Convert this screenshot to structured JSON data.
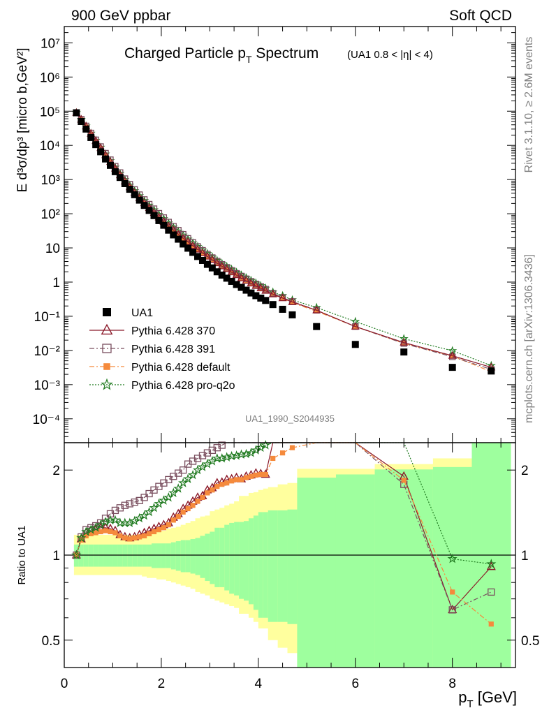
{
  "header": {
    "left": "900 GeV ppbar",
    "right": "Soft QCD"
  },
  "side": {
    "top": "Rivet 3.1.10, ≥ 2.6M events",
    "bottom": "mcplots.cern.ch [arXiv:1306.3436]"
  },
  "chart_data": [
    {
      "type": "scatter",
      "panel": "main",
      "title": "Charged Particle p",
      "title_sub": "T",
      "title_rest": " Spectrum",
      "title_extra": "(UA1 0.8 < |η| < 4)",
      "ylabel": "E d³σ/dp³ [micro b,GeV²]",
      "yscale": "log",
      "ylim": [
        2e-05,
        30000000
      ],
      "xlim": [
        0,
        9.3
      ],
      "watermark": "UA1_1990_S2044935",
      "ytick_labels": [
        "10⁷",
        "10⁶",
        "10⁵",
        "10⁴",
        "10³",
        "10²",
        "10",
        "1",
        "10⁻¹",
        "10⁻²",
        "10⁻³",
        "10⁻⁴"
      ],
      "legend_position": "lower-left",
      "series": [
        {
          "name": "UA1",
          "color": "#000000",
          "marker": "filled-square",
          "x": [
            0.25,
            0.35,
            0.45,
            0.55,
            0.65,
            0.75,
            0.85,
            0.95,
            1.05,
            1.15,
            1.25,
            1.35,
            1.45,
            1.55,
            1.65,
            1.75,
            1.85,
            1.95,
            2.05,
            2.15,
            2.25,
            2.35,
            2.45,
            2.55,
            2.65,
            2.75,
            2.85,
            2.95,
            3.05,
            3.15,
            3.25,
            3.35,
            3.45,
            3.55,
            3.65,
            3.75,
            3.85,
            3.95,
            4.05,
            4.15,
            4.3,
            4.5,
            4.7,
            5.2,
            6.0,
            7.0,
            8.0,
            8.8
          ],
          "y": [
            90000,
            50000,
            30000,
            17000,
            10500,
            6500,
            4000,
            2600,
            1700,
            1150,
            760,
            520,
            360,
            250,
            175,
            125,
            88,
            63,
            46,
            33,
            24,
            18,
            13,
            9.8,
            7.4,
            5.6,
            4.3,
            3.3,
            2.6,
            2.0,
            1.6,
            1.3,
            1.05,
            0.85,
            0.7,
            0.58,
            0.48,
            0.4,
            0.34,
            0.29,
            0.22,
            0.16,
            0.11,
            0.05,
            0.015,
            0.009,
            0.0032,
            0.0025
          ]
        },
        {
          "name": "Pythia 6.428 370",
          "color": "#8B1A2A",
          "marker": "open-triangle",
          "line": "solid",
          "x": [
            0.25,
            0.35,
            0.45,
            0.55,
            0.65,
            0.75,
            0.85,
            0.95,
            1.05,
            1.15,
            1.25,
            1.35,
            1.45,
            1.55,
            1.65,
            1.75,
            1.85,
            1.95,
            2.05,
            2.15,
            2.25,
            2.35,
            2.45,
            2.55,
            2.65,
            2.75,
            2.85,
            2.95,
            3.05,
            3.15,
            3.25,
            3.35,
            3.45,
            3.55,
            3.65,
            3.75,
            3.85,
            3.95,
            4.05,
            4.15,
            4.3,
            4.5,
            4.7,
            5.2,
            6.0,
            7.0,
            8.0,
            8.8
          ],
          "y": [
            90000,
            57000,
            36000,
            22000,
            13500,
            8400,
            5200,
            3300,
            2100,
            1350,
            880,
            600,
            410,
            290,
            205,
            148,
            107,
            78,
            58,
            43,
            33,
            25,
            19,
            15,
            11.5,
            9.0,
            7.1,
            5.6,
            4.5,
            3.6,
            2.9,
            2.4,
            1.95,
            1.6,
            1.3,
            1.1,
            0.92,
            0.78,
            0.66,
            0.56,
            0.44,
            0.34,
            0.26,
            0.15,
            0.05,
            0.017,
            0.007,
            0.0032
          ]
        },
        {
          "name": "Pythia 6.428 391",
          "color": "#7A4F5F",
          "marker": "open-square",
          "line": "dash-dot",
          "x": [
            0.25,
            0.35,
            0.45,
            0.55,
            0.65,
            0.75,
            0.85,
            0.95,
            1.05,
            1.15,
            1.25,
            1.35,
            1.45,
            1.55,
            1.65,
            1.75,
            1.85,
            1.95,
            2.05,
            2.15,
            2.25,
            2.35,
            2.45,
            2.55,
            2.65,
            2.75,
            2.85,
            2.95,
            3.05,
            3.15,
            3.25,
            3.35,
            3.45,
            3.55,
            3.65,
            3.75,
            3.85,
            3.95,
            4.05,
            4.15,
            4.3,
            4.5,
            4.7,
            5.2,
            6.0,
            7.0,
            8.0,
            8.8
          ],
          "y": [
            90000,
            58000,
            37000,
            23000,
            14500,
            9200,
            5900,
            3800,
            2450,
            1600,
            1060,
            730,
            510,
            360,
            260,
            190,
            140,
            103,
            77,
            57,
            43,
            33,
            25,
            19,
            14.5,
            11,
            8.5,
            6.6,
            5.2,
            4.1,
            3.3,
            2.7,
            2.2,
            1.8,
            1.5,
            1.25,
            1.05,
            0.88,
            0.74,
            0.62,
            0.47,
            0.35,
            0.27,
            0.15,
            0.05,
            0.016,
            0.0065,
            0.0028
          ]
        },
        {
          "name": "Pythia 6.428 default",
          "color": "#F58A3C",
          "marker": "filled-square-small",
          "line": "dash-dot",
          "x": [
            0.25,
            0.35,
            0.45,
            0.55,
            0.65,
            0.75,
            0.85,
            0.95,
            1.05,
            1.15,
            1.25,
            1.35,
            1.45,
            1.55,
            1.65,
            1.75,
            1.85,
            1.95,
            2.05,
            2.15,
            2.25,
            2.35,
            2.45,
            2.55,
            2.65,
            2.75,
            2.85,
            2.95,
            3.05,
            3.15,
            3.25,
            3.35,
            3.45,
            3.55,
            3.65,
            3.75,
            3.85,
            3.95,
            4.05,
            4.15,
            4.3,
            4.5,
            4.7,
            5.2,
            6.0,
            7.0,
            8.0,
            8.8
          ],
          "y": [
            90000,
            56000,
            35000,
            21500,
            13200,
            8200,
            5100,
            3250,
            2050,
            1320,
            860,
            590,
            405,
            285,
            200,
            145,
            105,
            77,
            57,
            42,
            32,
            24,
            18.5,
            14.5,
            11.2,
            8.8,
            6.9,
            5.5,
            4.4,
            3.5,
            2.85,
            2.35,
            1.9,
            1.57,
            1.3,
            1.08,
            0.9,
            0.76,
            0.64,
            0.55,
            0.43,
            0.33,
            0.25,
            0.14,
            0.05,
            0.016,
            0.0068,
            0.0024
          ]
        },
        {
          "name": "Pythia 6.428 pro-q2o",
          "color": "#1F7A1F",
          "marker": "open-star",
          "line": "dotted",
          "x": [
            0.25,
            0.35,
            0.45,
            0.55,
            0.65,
            0.75,
            0.85,
            0.95,
            1.05,
            1.15,
            1.25,
            1.35,
            1.45,
            1.55,
            1.65,
            1.75,
            1.85,
            1.95,
            2.05,
            2.15,
            2.25,
            2.35,
            2.45,
            2.55,
            2.65,
            2.75,
            2.85,
            2.95,
            3.05,
            3.15,
            3.25,
            3.35,
            3.45,
            3.55,
            3.65,
            3.75,
            3.85,
            3.95,
            4.05,
            4.15,
            4.3,
            4.5,
            4.7,
            5.2,
            6.0,
            7.0,
            8.0,
            8.8
          ],
          "y": [
            90000,
            57000,
            36500,
            22500,
            14000,
            8800,
            5550,
            3550,
            2300,
            1500,
            990,
            680,
            470,
            335,
            240,
            176,
            129,
            95,
            71,
            53,
            40,
            30.5,
            23.5,
            18,
            14,
            11,
            8.6,
            6.8,
            5.4,
            4.3,
            3.5,
            2.85,
            2.35,
            1.93,
            1.6,
            1.33,
            1.11,
            0.93,
            0.78,
            0.66,
            0.51,
            0.4,
            0.3,
            0.18,
            0.07,
            0.022,
            0.0098,
            0.0036
          ]
        }
      ]
    },
    {
      "type": "scatter",
      "panel": "ratio",
      "ylabel": "Ratio to UA1",
      "xlabel": "p",
      "xlabel_sub": "T",
      "xlabel_rest": " [GeV]",
      "yscale": "log",
      "ylim": [
        0.4,
        2.5
      ],
      "xlim": [
        0,
        9.3
      ],
      "xtick_labels": [
        "0",
        "2",
        "4",
        "6",
        "8"
      ],
      "ytick_labels": [
        "0.5",
        "1",
        "2"
      ],
      "band_edges": [
        0.2,
        0.3,
        0.4,
        0.5,
        0.6,
        0.7,
        0.8,
        0.9,
        1.0,
        1.1,
        1.2,
        1.3,
        1.4,
        1.5,
        1.6,
        1.7,
        1.8,
        1.9,
        2.0,
        2.1,
        2.2,
        2.3,
        2.4,
        2.5,
        2.6,
        2.7,
        2.8,
        2.9,
        3.0,
        3.1,
        3.2,
        3.3,
        3.4,
        3.5,
        3.6,
        3.7,
        3.8,
        3.9,
        4.0,
        4.1,
        4.2,
        4.4,
        4.6,
        4.8,
        5.6,
        6.4,
        7.6,
        8.4,
        9.2
      ],
      "band_stat_up": [
        1.09,
        1.09,
        1.09,
        1.09,
        1.09,
        1.09,
        1.09,
        1.09,
        1.09,
        1.09,
        1.09,
        1.09,
        1.09,
        1.09,
        1.09,
        1.09,
        1.1,
        1.1,
        1.1,
        1.1,
        1.11,
        1.12,
        1.13,
        1.13,
        1.14,
        1.15,
        1.17,
        1.19,
        1.21,
        1.25,
        1.25,
        1.28,
        1.3,
        1.31,
        1.31,
        1.32,
        1.35,
        1.38,
        1.42,
        1.42,
        1.44,
        1.44,
        1.45,
        1.88,
        1.93,
        2.01,
        2.05,
        2.55
      ],
      "band_stat_dn": [
        0.91,
        0.91,
        0.91,
        0.91,
        0.91,
        0.91,
        0.91,
        0.91,
        0.91,
        0.91,
        0.91,
        0.91,
        0.91,
        0.91,
        0.91,
        0.91,
        0.9,
        0.9,
        0.9,
        0.9,
        0.89,
        0.88,
        0.87,
        0.87,
        0.86,
        0.85,
        0.83,
        0.81,
        0.79,
        0.77,
        0.77,
        0.75,
        0.73,
        0.72,
        0.7,
        0.69,
        0.67,
        0.64,
        0.6,
        0.6,
        0.58,
        0.58,
        0.57,
        0.4,
        0.4,
        0.4,
        0.4,
        0.4
      ],
      "band_tot_up": [
        1.18,
        1.18,
        1.18,
        1.18,
        1.18,
        1.18,
        1.18,
        1.18,
        1.18,
        1.18,
        1.18,
        1.18,
        1.18,
        1.18,
        1.19,
        1.2,
        1.21,
        1.21,
        1.22,
        1.24,
        1.25,
        1.26,
        1.28,
        1.3,
        1.32,
        1.35,
        1.37,
        1.38,
        1.43,
        1.45,
        1.47,
        1.5,
        1.52,
        1.55,
        1.62,
        1.62,
        1.66,
        1.67,
        1.7,
        1.72,
        1.74,
        1.78,
        1.8,
        2.02,
        2.02,
        2.1,
        2.2,
        2.6
      ],
      "band_tot_dn": [
        0.85,
        0.85,
        0.85,
        0.85,
        0.85,
        0.85,
        0.85,
        0.85,
        0.85,
        0.85,
        0.85,
        0.85,
        0.85,
        0.85,
        0.84,
        0.83,
        0.83,
        0.82,
        0.82,
        0.81,
        0.8,
        0.79,
        0.78,
        0.77,
        0.76,
        0.74,
        0.73,
        0.72,
        0.7,
        0.69,
        0.68,
        0.67,
        0.66,
        0.65,
        0.62,
        0.62,
        0.6,
        0.58,
        0.55,
        0.55,
        0.5,
        0.47,
        0.45,
        0.4,
        0.4,
        0.4,
        0.4,
        0.4
      ],
      "series": [
        {
          "name": "Pythia 6.428 370",
          "y": [
            1.0,
            1.14,
            1.2,
            1.22,
            1.23,
            1.25,
            1.25,
            1.24,
            1.22,
            1.18,
            1.16,
            1.15,
            1.16,
            1.18,
            1.2,
            1.22,
            1.24,
            1.26,
            1.28,
            1.3,
            1.36,
            1.4,
            1.46,
            1.5,
            1.55,
            1.6,
            1.62,
            1.7,
            1.73,
            1.8,
            1.81,
            1.85,
            1.86,
            1.88,
            1.86,
            1.9,
            1.92,
            1.95,
            1.94,
            1.93,
            2.6,
            2.6,
            2.6,
            2.6,
            2.6,
            1.9,
            0.64,
            0.91
          ]
        },
        {
          "name": "Pythia 6.428 391",
          "y": [
            1.0,
            1.16,
            1.23,
            1.25,
            1.27,
            1.3,
            1.35,
            1.4,
            1.44,
            1.47,
            1.5,
            1.52,
            1.54,
            1.56,
            1.6,
            1.65,
            1.7,
            1.75,
            1.8,
            1.85,
            1.9,
            1.95,
            2.0,
            2.1,
            2.15,
            2.2,
            2.25,
            2.3,
            2.35,
            2.4,
            2.45,
            2.5,
            2.55,
            2.6,
            2.6,
            2.6,
            2.6,
            2.6,
            2.6,
            2.6,
            2.6,
            2.6,
            2.6,
            2.6,
            2.6,
            1.78,
            0.64,
            0.74
          ]
        },
        {
          "name": "Pythia 6.428 default",
          "y": [
            1.0,
            1.13,
            1.17,
            1.19,
            1.2,
            1.21,
            1.22,
            1.21,
            1.2,
            1.17,
            1.15,
            1.14,
            1.15,
            1.16,
            1.17,
            1.19,
            1.21,
            1.23,
            1.25,
            1.28,
            1.33,
            1.37,
            1.42,
            1.46,
            1.5,
            1.55,
            1.6,
            1.66,
            1.7,
            1.75,
            1.78,
            1.8,
            1.83,
            1.85,
            1.85,
            1.88,
            1.9,
            1.92,
            1.93,
            1.93,
            2.2,
            2.3,
            2.4,
            2.6,
            2.6,
            1.84,
            0.74,
            0.57
          ]
        },
        {
          "name": "Pythia 6.428 pro-q2o",
          "y": [
            1.0,
            1.15,
            1.21,
            1.23,
            1.25,
            1.28,
            1.31,
            1.33,
            1.33,
            1.3,
            1.3,
            1.3,
            1.32,
            1.35,
            1.38,
            1.42,
            1.47,
            1.52,
            1.56,
            1.6,
            1.66,
            1.72,
            1.8,
            1.86,
            1.92,
            2.0,
            2.05,
            2.1,
            2.15,
            2.2,
            2.2,
            2.22,
            2.24,
            2.25,
            2.27,
            2.28,
            2.3,
            2.35,
            2.4,
            2.45,
            2.6,
            2.6,
            2.6,
            2.6,
            2.6,
            2.5,
            0.97,
            0.93
          ]
        }
      ]
    }
  ]
}
